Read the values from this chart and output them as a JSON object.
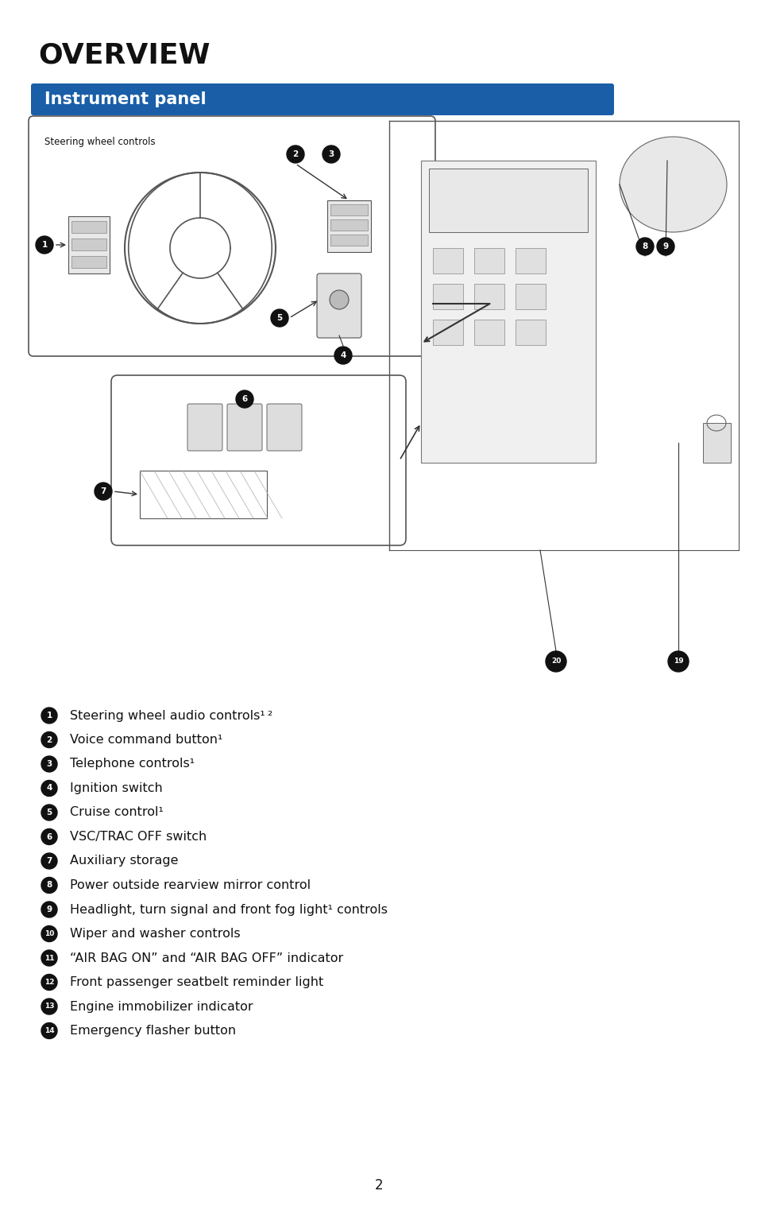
{
  "page_bg": "#ffffff",
  "title": "OVERVIEW",
  "title_fontsize": 26,
  "title_color": "#111111",
  "section_label": "Instrument panel",
  "section_bg": "#1a5ea8",
  "section_text_color": "#ffffff",
  "section_fontsize": 15,
  "items": [
    {
      "num": "1",
      "text": "Steering wheel audio controls¹ ²"
    },
    {
      "num": "2",
      "text": "Voice command button¹"
    },
    {
      "num": "3",
      "text": "Telephone controls¹"
    },
    {
      "num": "4",
      "text": "Ignition switch"
    },
    {
      "num": "5",
      "text": "Cruise control¹"
    },
    {
      "num": "6",
      "text": "VSC/TRAC OFF switch"
    },
    {
      "num": "7",
      "text": "Auxiliary storage"
    },
    {
      "num": "8",
      "text": "Power outside rearview mirror control"
    },
    {
      "num": "9",
      "text": "Headlight, turn signal and front fog light¹ controls"
    },
    {
      "num": "10",
      "text": "Wiper and washer controls"
    },
    {
      "num": "11",
      "text": "“AIR BAG ON” and “AIR BAG OFF” indicator"
    },
    {
      "num": "12",
      "text": "Front passenger seatbelt reminder light"
    },
    {
      "num": "13",
      "text": "Engine immobilizer indicator"
    },
    {
      "num": "14",
      "text": "Emergency flasher button"
    }
  ],
  "page_number": "2",
  "item_fontsize": 11.5,
  "bullet_color": "#111111",
  "bullet_text_color": "#ffffff"
}
